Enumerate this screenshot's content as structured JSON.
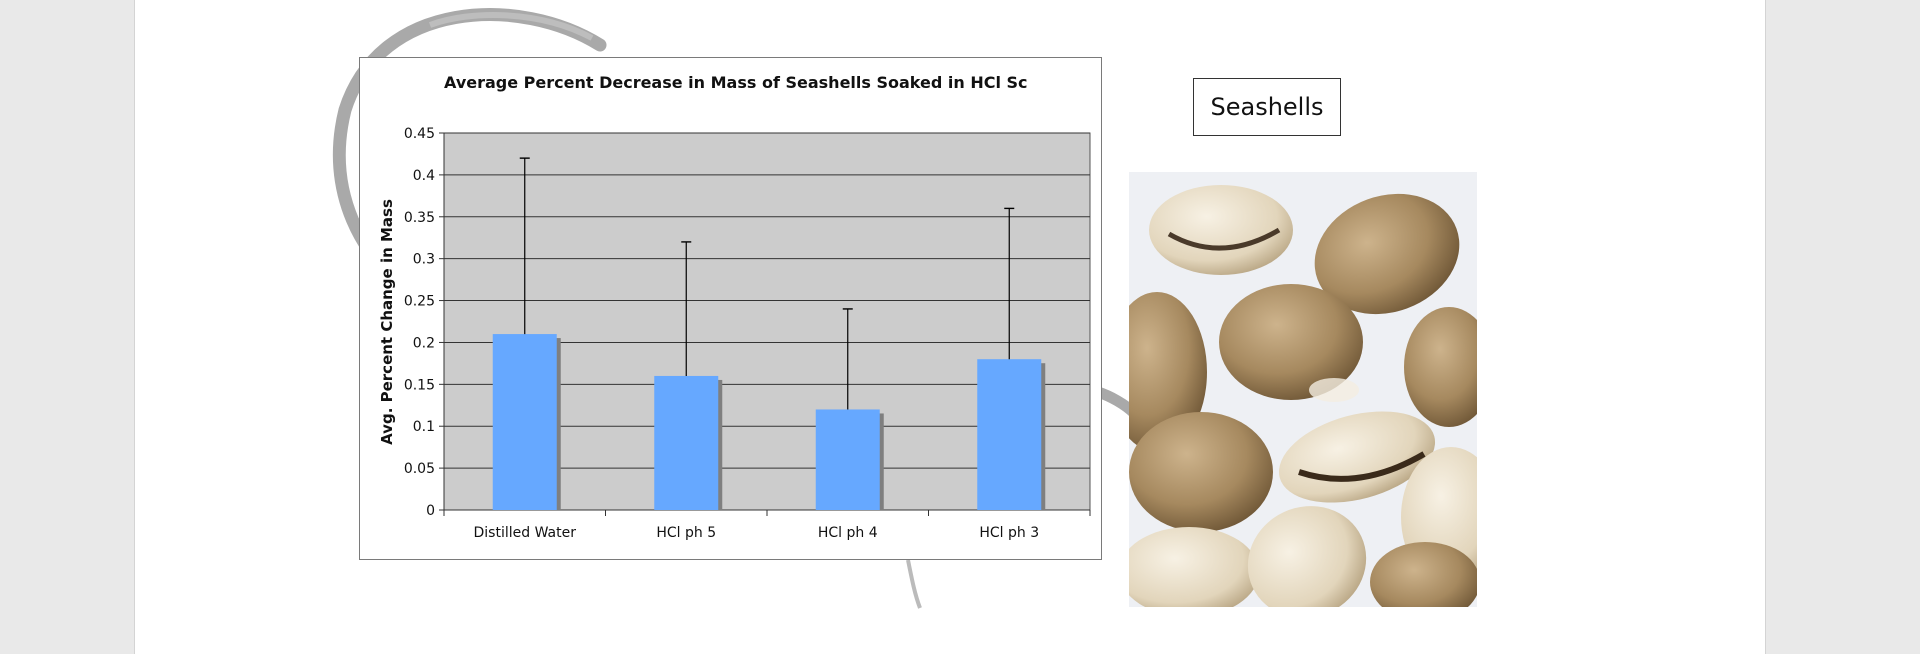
{
  "chart_data": {
    "type": "bar",
    "title": "Average Percent Decrease in Mass of Seashells Soaked in HCl Sc",
    "xlabel": "",
    "ylabel": "Avg. Percent Change in Mass",
    "categories": [
      "Distilled Water",
      "HCl ph 5",
      "HCl ph 4",
      "HCl ph 3"
    ],
    "values": [
      0.21,
      0.16,
      0.12,
      0.18
    ],
    "error_upper": [
      0.42,
      0.32,
      0.24,
      0.36
    ],
    "ylim": [
      0,
      0.45
    ],
    "yticks": [
      0,
      0.05,
      0.1,
      0.15,
      0.2,
      0.25,
      0.3,
      0.35,
      0.4,
      0.45
    ],
    "ytick_labels": [
      "0",
      "0.05",
      "0.1",
      "0.15",
      "0.2",
      "0.25",
      "0.3",
      "0.35",
      "0.4",
      "0.45"
    ],
    "grid": true,
    "bar_color": "#66a8ff",
    "plot_background": "#cccccc"
  },
  "caption": {
    "label": "Seashells"
  },
  "photo": {
    "icon": "seashells-photo"
  }
}
